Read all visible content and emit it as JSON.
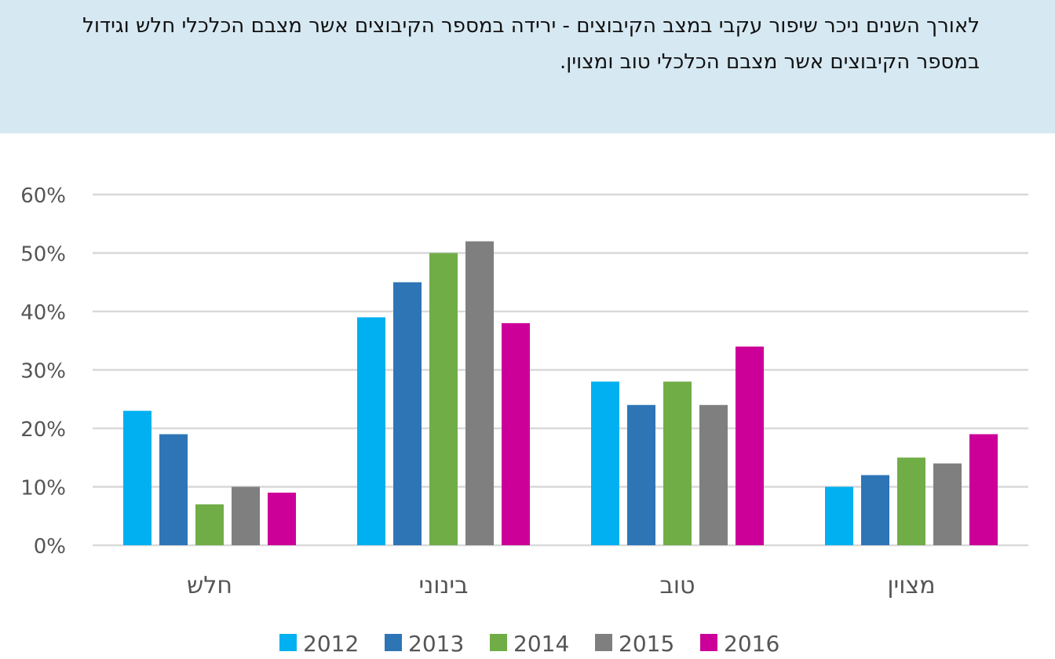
{
  "header": {
    "text": "לאורך השנים ניכר שיפור עקבי במצב הקיבוצים - ירידה במספר הקיבוצים אשר מצבם הכלכלי חלש וגידול במספר הקיבוצים אשר מצבם הכלכלי טוב ומצוין."
  },
  "colors": {
    "banner_background": "#d6e8f2",
    "gridline": "#d9d9d9",
    "2012": "#00b0f0",
    "2013": "#2e75b6",
    "2014": "#70ad47",
    "2015": "#7f7f7f",
    "2016": "#cc0099"
  },
  "chart_data": {
    "type": "bar",
    "categories": [
      "חלש",
      "בינוני",
      "טוב",
      "מצוין"
    ],
    "series": [
      {
        "name": "2012",
        "color": "#00b0f0",
        "values": [
          23,
          39,
          28,
          10
        ]
      },
      {
        "name": "2013",
        "color": "#2e75b6",
        "values": [
          19,
          45,
          24,
          12
        ]
      },
      {
        "name": "2014",
        "color": "#70ad47",
        "values": [
          7,
          50,
          28,
          15
        ]
      },
      {
        "name": "2015",
        "color": "#7f7f7f",
        "values": [
          10,
          52,
          24,
          14
        ]
      },
      {
        "name": "2016",
        "color": "#cc0099",
        "values": [
          9,
          38,
          34,
          19
        ]
      }
    ],
    "y_ticks": [
      "0%",
      "10%",
      "20%",
      "30%",
      "40%",
      "50%",
      "60%"
    ],
    "ylim": [
      0,
      60
    ],
    "grid": true,
    "legend_position": "bottom"
  }
}
